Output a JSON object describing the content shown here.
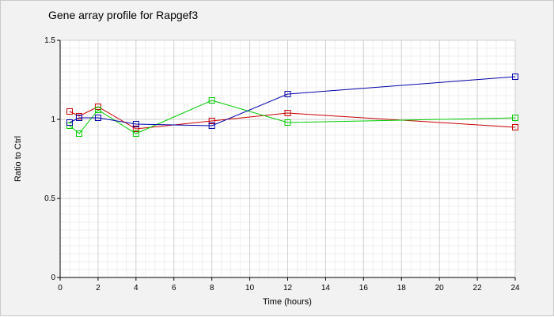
{
  "chart_data": {
    "type": "line",
    "title": "Gene array profile for Rapgef3",
    "xlabel": "Time (hours)",
    "ylabel": "Ratio to Ctrl",
    "xlim": [
      0,
      24
    ],
    "ylim": [
      0,
      1.5
    ],
    "x_ticks": [
      0,
      2,
      4,
      6,
      8,
      10,
      12,
      14,
      16,
      18,
      20,
      22,
      24
    ],
    "x_tick_labels": [
      "0",
      "2",
      "4",
      "6",
      "8",
      "10",
      "12",
      "14",
      "16",
      "18",
      "20",
      "22",
      "24"
    ],
    "y_ticks": [
      0,
      0.5,
      1,
      1.5
    ],
    "y_tick_labels": [
      "0",
      "0.5",
      "1",
      "1.5"
    ],
    "grid": true,
    "legend": false,
    "series": [
      {
        "color": "#cc0000",
        "marker": "square",
        "x": [
          0.5,
          1,
          2,
          4,
          8,
          12,
          24
        ],
        "y": [
          1.05,
          1.02,
          1.08,
          0.94,
          0.99,
          1.04,
          0.95
        ]
      },
      {
        "color": "#00cc00",
        "marker": "square",
        "x": [
          0.5,
          1,
          2,
          4,
          8,
          12,
          24
        ],
        "y": [
          0.96,
          0.91,
          1.06,
          0.91,
          1.12,
          0.98,
          1.01
        ]
      },
      {
        "color": "#0000aa",
        "marker": "square",
        "x": [
          0.5,
          1,
          2,
          4,
          8,
          12,
          24
        ],
        "y": [
          0.98,
          1.01,
          1.01,
          0.97,
          0.96,
          1.16,
          1.27
        ]
      }
    ]
  }
}
